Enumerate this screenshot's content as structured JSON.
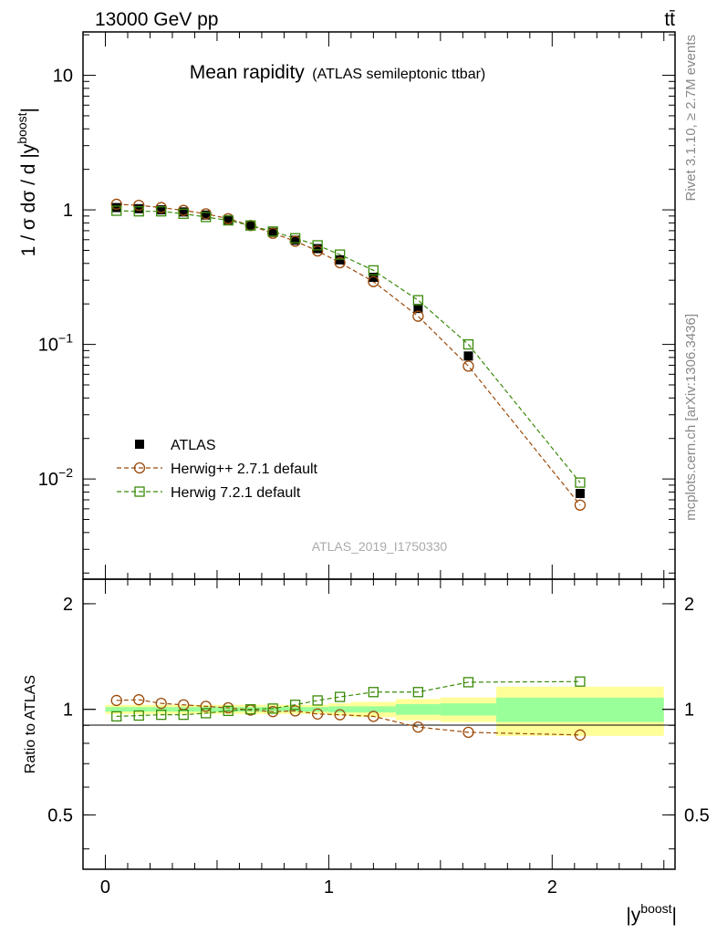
{
  "header": {
    "left": "13000 GeV pp",
    "right": "tt̄"
  },
  "main": {
    "title": "Mean rapidity",
    "subtitle": "(ATLAS semileptonic ttbar)",
    "analysis_id": "ATLAS_2019_I1750330",
    "ylabel": "1 / σ dσ / d |y",
    "ylabel_sup": "boost",
    "ylabel_end": "|"
  },
  "ratio": {
    "ylabel": "Ratio to ATLAS"
  },
  "xaxis": {
    "label": "|y",
    "label_sup": "boost",
    "label_end": "|"
  },
  "side": {
    "rivet": "Rivet 3.1.10, ≥ 2.7M events",
    "mcplots": "mcplots.cern.ch [arXiv:1306.3436]"
  },
  "main_ticks": [
    {
      "v": 10,
      "base": "10",
      "exp": ""
    },
    {
      "v": 1,
      "base": "1",
      "exp": ""
    },
    {
      "v": 0.1,
      "base": "10",
      "exp": "−1"
    },
    {
      "v": 0.01,
      "base": "10",
      "exp": "−2"
    }
  ],
  "ratio_ticks": [
    {
      "v": 2,
      "label": "2"
    },
    {
      "v": 1,
      "label": "1"
    },
    {
      "v": 0.5,
      "label": "0.5"
    }
  ],
  "x_ticks": [
    {
      "v": 0,
      "label": "0"
    },
    {
      "v": 1,
      "label": "1"
    },
    {
      "v": 2,
      "label": "2"
    }
  ],
  "chart_data": {
    "type": "scatter",
    "xscale": "linear",
    "yscale": "log",
    "xlim": [
      -0.1,
      2.55
    ],
    "ylim": [
      0.0018,
      21
    ],
    "ratio_ylim": [
      0.35,
      2.35
    ],
    "ratio_yscale": "log",
    "x_edges": [
      0,
      0.1,
      0.2,
      0.3,
      0.4,
      0.5,
      0.6,
      0.7,
      0.8,
      0.9,
      1.0,
      1.1,
      1.3,
      1.5,
      1.75,
      2.5
    ],
    "x": [
      0.05,
      0.15,
      0.25,
      0.35,
      0.45,
      0.55,
      0.65,
      0.75,
      0.85,
      0.95,
      1.05,
      1.2,
      1.4,
      1.625,
      2.125
    ],
    "legend_position": "bottom-left",
    "series": [
      {
        "name": "ATLAS",
        "marker": "filled-square",
        "color": "#000000",
        "values": [
          1.04,
          1.02,
          1.0,
          0.965,
          0.915,
          0.845,
          0.765,
          0.68,
          0.595,
          0.515,
          0.425,
          0.315,
          0.185,
          0.082,
          0.0078
        ],
        "ratio_band_inner": [
          0.015,
          0.015,
          0.015,
          0.015,
          0.015,
          0.015,
          0.015,
          0.015,
          0.015,
          0.015,
          0.02,
          0.02,
          0.035,
          0.04,
          0.08
        ],
        "ratio_band_outer": [
          0.03,
          0.03,
          0.03,
          0.03,
          0.03,
          0.03,
          0.03,
          0.03,
          0.03,
          0.03,
          0.04,
          0.05,
          0.07,
          0.08,
          0.16
        ]
      },
      {
        "name": "Herwig++ 2.7.1 default",
        "marker": "open-circle",
        "color": "#9b4a0a",
        "line": "dashed",
        "values": [
          1.1,
          1.08,
          1.04,
          0.99,
          0.935,
          0.86,
          0.765,
          0.67,
          0.585,
          0.495,
          0.405,
          0.293,
          0.162,
          0.069,
          0.0064
        ],
        "ratio": [
          1.06,
          1.065,
          1.04,
          1.03,
          1.02,
          1.01,
          0.995,
          0.985,
          0.99,
          0.97,
          0.965,
          0.955,
          0.89,
          0.86,
          0.845
        ]
      },
      {
        "name": "Herwig 7.2.1 default",
        "marker": "open-square",
        "color": "#3a8a0a",
        "line": "dashed",
        "values": [
          0.985,
          0.975,
          0.975,
          0.935,
          0.885,
          0.835,
          0.765,
          0.69,
          0.615,
          0.545,
          0.465,
          0.355,
          0.213,
          0.1,
          0.0094
        ],
        "ratio": [
          0.955,
          0.96,
          0.965,
          0.965,
          0.975,
          0.99,
          1.0,
          1.005,
          1.03,
          1.06,
          1.085,
          1.12,
          1.12,
          1.195,
          1.2
        ]
      }
    ]
  },
  "colors": {
    "band_inner": "#99ff99",
    "band_outer": "#ffff99",
    "axis": "#000000",
    "side_text": "#888888",
    "analysis_text": "#aaaaaa"
  }
}
